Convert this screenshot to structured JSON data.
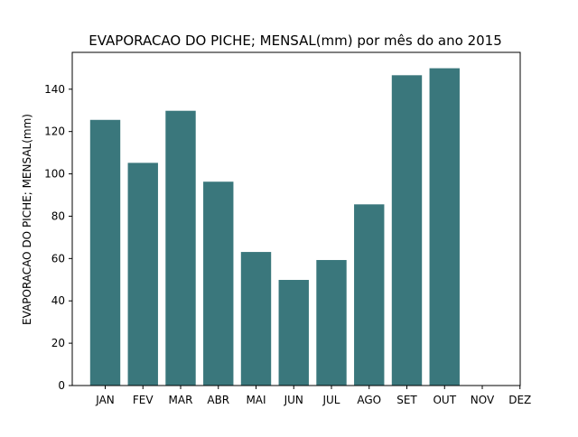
{
  "chart_data": {
    "type": "bar",
    "title": "EVAPORACAO DO PICHE; MENSAL(mm) por mês do ano 2015",
    "xlabel": "",
    "ylabel": "EVAPORACAO DO PICHE; MENSAL(mm)",
    "categories": [
      "JAN",
      "FEV",
      "MAR",
      "ABR",
      "MAI",
      "JUN",
      "JUL",
      "AGO",
      "SET",
      "OUT",
      "NOV",
      "DEZ"
    ],
    "values": [
      125.5,
      105.2,
      129.8,
      96.3,
      63.1,
      49.9,
      59.3,
      85.6,
      146.6,
      149.9,
      null,
      null
    ],
    "ylim": [
      0,
      157.4
    ],
    "yticks": [
      0,
      20,
      40,
      60,
      80,
      100,
      120,
      140
    ],
    "grid": false,
    "legend": "none",
    "bar_color": "#3a777c"
  }
}
